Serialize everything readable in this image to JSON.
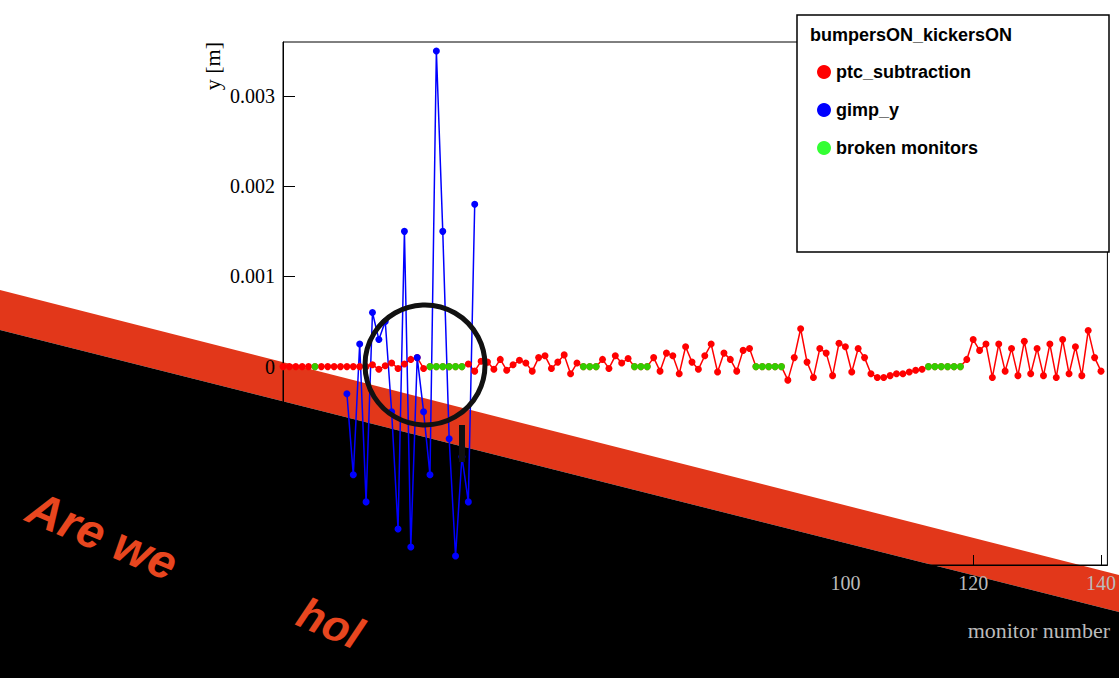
{
  "chart_data": {
    "type": "line",
    "title": "bumpersON_kickersON",
    "x_label": "monitor number",
    "y_label": "y [m]",
    "xlim": [
      12,
      141
    ],
    "xticks": [
      100,
      120,
      140
    ],
    "ylim": [
      -0.0022,
      0.0036
    ],
    "yticks": [
      0,
      0.001,
      0.002,
      0.003
    ],
    "grid": false,
    "legend": "top-right",
    "annotations": [
      "Are we",
      "hol"
    ],
    "series": [
      {
        "name": "ptc_subtraction",
        "color": "#ff0000",
        "type": "line",
        "marker": "circle",
        "x": [
          12,
          13,
          14,
          15,
          16,
          17,
          18,
          19,
          20,
          21,
          22,
          23,
          24,
          25,
          26,
          27,
          28,
          29,
          30,
          31,
          32,
          33,
          34,
          35,
          36,
          37,
          38,
          39,
          40,
          41,
          42,
          43,
          44,
          45,
          46,
          47,
          48,
          49,
          50,
          51,
          52,
          53,
          54,
          55,
          56,
          57,
          58,
          59,
          60,
          61,
          62,
          63,
          64,
          65,
          66,
          67,
          68,
          69,
          70,
          71,
          72,
          73,
          74,
          75,
          76,
          77,
          78,
          79,
          80,
          81,
          82,
          83,
          84,
          85,
          86,
          87,
          88,
          89,
          90,
          91,
          92,
          93,
          94,
          95,
          96,
          97,
          98,
          99,
          100,
          101,
          102,
          103,
          104,
          105,
          106,
          107,
          108,
          109,
          110,
          111,
          112,
          113,
          114,
          115,
          116,
          117,
          118,
          119,
          120,
          121,
          122,
          123,
          124,
          125,
          126,
          127,
          128,
          129,
          130,
          131,
          132,
          133,
          134,
          135,
          136,
          137,
          138,
          139,
          140
        ],
        "values": [
          0,
          0,
          0,
          0,
          0,
          0,
          0,
          0,
          0,
          0,
          0,
          0,
          0,
          0,
          2e-05,
          -3e-05,
          1e-05,
          4e-05,
          -2e-05,
          3e-05,
          8e-05,
          0.0001,
          -2e-05,
          0,
          0,
          0,
          0,
          0,
          0,
          3e-05,
          -5e-05,
          6e-05,
          5e-05,
          -3e-05,
          8e-05,
          -4e-05,
          2e-05,
          7e-05,
          4e-05,
          -5e-05,
          0.0001,
          0.00012,
          -2e-05,
          5e-05,
          0.00013,
          -8e-05,
          4e-05,
          0,
          0,
          0,
          8e-05,
          -2e-05,
          0.00012,
          4e-05,
          9e-05,
          0,
          0,
          0,
          0.0001,
          -5e-05,
          0.00015,
          0.00012,
          -8e-05,
          0.00022,
          5e-05,
          -3e-05,
          0.00012,
          0.00025,
          -6e-05,
          0.00015,
          8e-05,
          -5e-05,
          0.00018,
          0.0002,
          0,
          0,
          0,
          0,
          0,
          -0.00015,
          0.0001,
          0.00042,
          5e-05,
          -0.00012,
          0.0002,
          0.00015,
          -0.0001,
          0.00026,
          0.00022,
          -6e-05,
          0.0002,
          0.0001,
          -8e-05,
          -0.00012,
          -0.00012,
          -0.0001,
          -8e-05,
          -8e-05,
          -6e-05,
          -4e-05,
          -3e-05,
          0,
          0,
          0,
          0,
          0,
          0,
          8e-05,
          0.0003,
          0.00018,
          0.00025,
          -0.00012,
          0.00025,
          -5e-05,
          0.0002,
          -0.0001,
          0.00028,
          -8e-05,
          0.0002,
          -0.0001,
          0.00025,
          -0.00012,
          0.0003,
          -8e-05,
          0.00022,
          -0.0001,
          0.0004,
          0.0001,
          -5e-05
        ]
      },
      {
        "name": "gimp_y",
        "color": "#0000ff",
        "type": "line",
        "marker": "circle",
        "x": [
          22,
          23,
          24,
          25,
          26,
          27,
          28,
          29,
          30,
          31,
          32,
          33,
          34,
          35,
          36,
          37,
          38,
          39,
          40,
          41,
          42
        ],
        "values": [
          -0.0003,
          -0.0012,
          0.00025,
          -0.0015,
          0.0006,
          0.0003,
          0.0005,
          -0.0005,
          -0.0018,
          0.0015,
          -0.002,
          0.0001,
          -0.0005,
          -0.0012,
          0.0035,
          0.0015,
          -0.0008,
          -0.0021,
          -0.001,
          -0.0015,
          0.0018
        ]
      },
      {
        "name": "broken monitors",
        "color": "#00ff00",
        "type": "scatter",
        "marker": "circle",
        "x": [
          17,
          35,
          36,
          37,
          38,
          39,
          40,
          59,
          60,
          61,
          67,
          68,
          69,
          86,
          87,
          88,
          89,
          90,
          113,
          114,
          115,
          116,
          117,
          118
        ],
        "values": [
          0,
          0,
          0,
          0,
          0,
          0,
          0,
          0,
          0,
          0,
          0,
          0,
          0,
          0,
          0,
          0,
          0,
          0,
          0,
          0,
          0,
          0,
          0,
          0
        ]
      }
    ]
  }
}
